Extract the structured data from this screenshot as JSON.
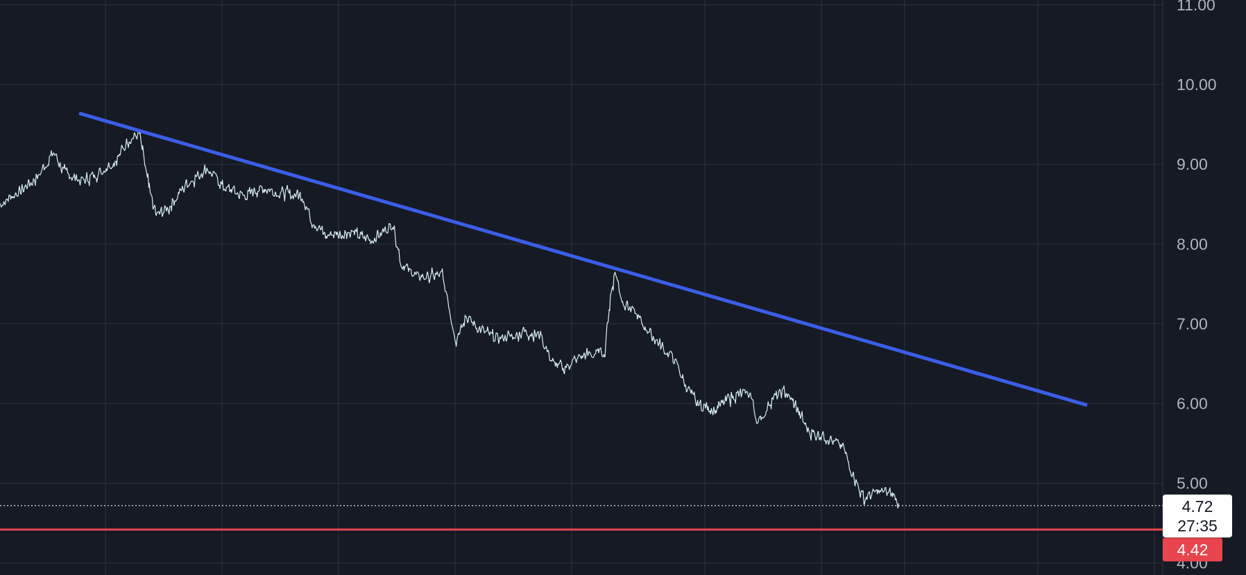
{
  "chart_data": {
    "type": "line",
    "title": "",
    "xlabel": "",
    "ylabel": "",
    "ylim": [
      3.85,
      11.06
    ],
    "y_ticks": [
      "11.00",
      "10.00",
      "9.00",
      "8.00",
      "7.00",
      "6.00",
      "5.00",
      "4.00"
    ],
    "grid": true,
    "legend": "none",
    "x_range": [
      0,
      100
    ],
    "series": [
      {
        "values": [
          [
            0,
            8.5
          ],
          [
            3,
            8.8
          ],
          [
            4.6,
            9.15
          ],
          [
            5.5,
            8.9
          ],
          [
            7,
            8.78
          ],
          [
            8.5,
            8.9
          ],
          [
            10,
            9.05
          ],
          [
            11,
            9.3
          ],
          [
            12,
            9.38
          ],
          [
            12.8,
            8.7
          ],
          [
            13.4,
            8.35
          ],
          [
            14.5,
            8.45
          ],
          [
            16,
            8.75
          ],
          [
            17.8,
            8.95
          ],
          [
            19.2,
            8.72
          ],
          [
            21,
            8.6
          ],
          [
            22.5,
            8.7
          ],
          [
            24,
            8.65
          ],
          [
            26,
            8.6
          ],
          [
            26.8,
            8.3
          ],
          [
            28,
            8.1
          ],
          [
            30,
            8.15
          ],
          [
            32,
            8.05
          ],
          [
            33.8,
            8.25
          ],
          [
            34.5,
            7.75
          ],
          [
            36,
            7.58
          ],
          [
            38,
            7.62
          ],
          [
            38.6,
            7.2
          ],
          [
            39.2,
            6.8
          ],
          [
            40,
            7.1
          ],
          [
            41,
            6.95
          ],
          [
            43,
            6.8
          ],
          [
            45,
            6.9
          ],
          [
            46.5,
            6.85
          ],
          [
            47.5,
            6.5
          ],
          [
            48.5,
            6.45
          ],
          [
            50,
            6.6
          ],
          [
            51,
            6.62
          ],
          [
            52,
            6.65
          ],
          [
            52.5,
            7.35
          ],
          [
            52.9,
            7.65
          ],
          [
            53.5,
            7.3
          ],
          [
            55,
            7.05
          ],
          [
            56.5,
            6.78
          ],
          [
            58,
            6.55
          ],
          [
            59,
            6.22
          ],
          [
            60,
            5.98
          ],
          [
            61.5,
            5.93
          ],
          [
            63,
            6.1
          ],
          [
            64.5,
            6.12
          ],
          [
            65.2,
            5.75
          ],
          [
            66.5,
            6.08
          ],
          [
            67.5,
            6.15
          ],
          [
            68.5,
            5.95
          ],
          [
            69.5,
            5.65
          ],
          [
            71,
            5.58
          ],
          [
            72.5,
            5.45
          ],
          [
            73.5,
            5.05
          ],
          [
            74.3,
            4.8
          ],
          [
            75.2,
            4.88
          ],
          [
            76.5,
            4.9
          ],
          [
            77.3,
            4.75
          ]
        ]
      }
    ],
    "trendline": {
      "from": [
        6.8,
        9.64
      ],
      "to": [
        93.5,
        5.98
      ],
      "color": "#3b5ee8"
    },
    "current_price": {
      "value": 4.72,
      "label": "4.72",
      "countdown": "27:35"
    },
    "support_line": {
      "value": 4.42,
      "label": "4.42",
      "color": "#e8454e"
    },
    "price_line_color": "#d9f2ee"
  }
}
